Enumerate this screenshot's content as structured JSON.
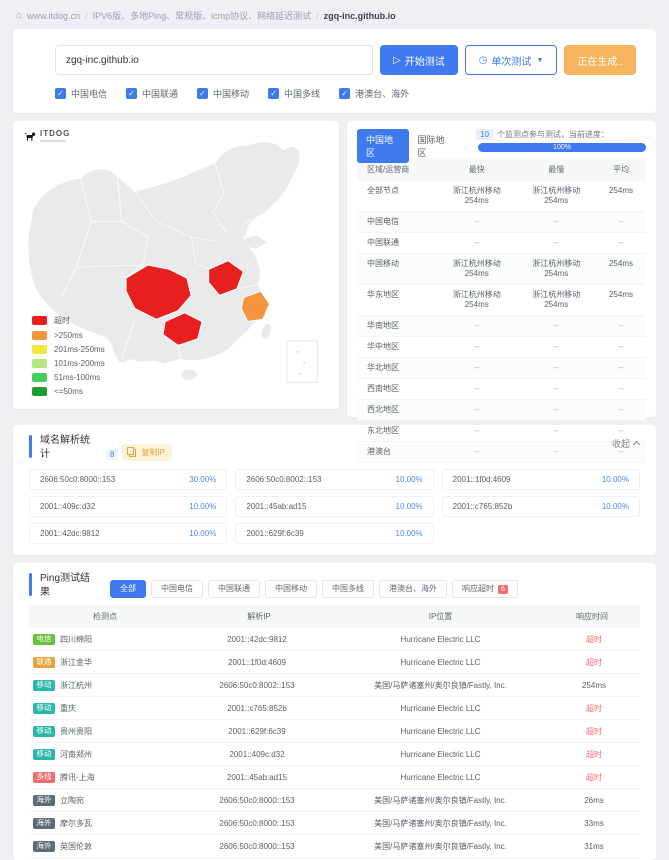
{
  "breadcrumb": {
    "home_label": "www.itdog.cn",
    "category": "IPV6版、多地Ping、常规版、icmp协议、网络延迟测试",
    "target": "zgq-inc.github.io"
  },
  "test_form": {
    "domain_input": "zgq-inc.github.io",
    "start_button": "开始测试",
    "mode_button": "单次测试",
    "generating_button": "正在生成..",
    "checkboxes": [
      {
        "label": "中国电信",
        "checked": true
      },
      {
        "label": "中国联通",
        "checked": true
      },
      {
        "label": "中国移动",
        "checked": true
      },
      {
        "label": "中国多线",
        "checked": true
      },
      {
        "label": "港澳台、海外",
        "checked": true
      }
    ]
  },
  "map_panel": {
    "logo_text": "ITDOG",
    "legend": [
      {
        "label": "超时",
        "color": "#e71f1f"
      },
      {
        "label": ">250ms",
        "color": "#f2953c"
      },
      {
        "label": "201ms-250ms",
        "color": "#f4e43f"
      },
      {
        "label": "101ms-200ms",
        "color": "#b5e57d"
      },
      {
        "label": "51ms-100ms",
        "color": "#44ce5f"
      },
      {
        "label": "<=50ms",
        "color": "#1e9d33"
      }
    ],
    "highlights": [
      {
        "province": "sichuan",
        "status": "超时"
      },
      {
        "province": "guizhou",
        "status": "超时"
      },
      {
        "province": "henan",
        "status": "超时"
      },
      {
        "province": "zhejiang",
        "status": ">250ms"
      }
    ]
  },
  "region_panel": {
    "tabs": [
      {
        "label": "中国地区",
        "active": true
      },
      {
        "label": "国际地区",
        "active": false
      }
    ],
    "monitor_count": "10",
    "progress_label": "个监测点参与测试，当前进度：",
    "progress_percent": "100%",
    "headers": [
      "区域/运营商",
      "最快",
      "最慢",
      "平均"
    ],
    "rows": [
      [
        "全部节点",
        "浙江杭州移动 254ms",
        "浙江杭州移动 254ms",
        "254ms"
      ],
      [
        "中国电信",
        "--",
        "--",
        "--"
      ],
      [
        "中国联通",
        "--",
        "--",
        "--"
      ],
      [
        "中国移动",
        "浙江杭州移动 254ms",
        "浙江杭州移动 254ms",
        "254ms"
      ],
      [
        "华东地区",
        "浙江杭州移动 254ms",
        "浙江杭州移动 254ms",
        "254ms"
      ],
      [
        "华南地区",
        "--",
        "--",
        "--"
      ],
      [
        "华中地区",
        "--",
        "--",
        "--"
      ],
      [
        "华北地区",
        "--",
        "--",
        "--"
      ],
      [
        "西南地区",
        "--",
        "--",
        "--"
      ],
      [
        "西北地区",
        "--",
        "--",
        "--"
      ],
      [
        "东北地区",
        "--",
        "--",
        "--"
      ],
      [
        "港澳台",
        "--",
        "--",
        "--"
      ]
    ]
  },
  "dns_panel": {
    "title": "域名解析统计",
    "count": "8",
    "copy_button": "复制IP",
    "collapse_label": "收起",
    "items": [
      {
        "ip": "2606:50c0:8000::153",
        "percent": "30.00%"
      },
      {
        "ip": "2606:50c0:8002::153",
        "percent": "10.00%"
      },
      {
        "ip": "2001::1f0d:4609",
        "percent": "10.00%"
      },
      {
        "ip": "2001::409c:d32",
        "percent": "10.00%"
      },
      {
        "ip": "2001::45ab:ad15",
        "percent": "10.00%"
      },
      {
        "ip": "2001::c765:852b",
        "percent": "10.00%"
      },
      {
        "ip": "2001::42dc:9812",
        "percent": "10.00%"
      },
      {
        "ip": "2001::629f:6c39",
        "percent": "10.00%"
      }
    ]
  },
  "ping_panel": {
    "title": "Ping测试结果",
    "tabs": [
      {
        "label": "全部",
        "active": true
      },
      {
        "label": "中国电信"
      },
      {
        "label": "中国联通"
      },
      {
        "label": "中国移动"
      },
      {
        "label": "中国多线"
      },
      {
        "label": "港澳台、海外"
      },
      {
        "label": "响应超时",
        "badge": "6"
      }
    ],
    "headers": [
      "检测点",
      "解析IP",
      "IP位置",
      "响应时间"
    ],
    "rows": [
      {
        "carrier": "电信",
        "carrier_color": "#67c23a",
        "node": "四川绵阳",
        "ip": "2001::42dc:9812",
        "location": "Hurricane Electric LLC",
        "latency": "超时",
        "timeout": true
      },
      {
        "carrier": "联通",
        "carrier_color": "#e6a23c",
        "node": "浙江金华",
        "ip": "2001::1f0d:4609",
        "location": "Hurricane Electric LLC",
        "latency": "超时",
        "timeout": true
      },
      {
        "carrier": "移动",
        "carrier_color": "#2bb8aa",
        "node": "浙江杭州",
        "ip": "2606:50c0:8002::153",
        "location": "美国/马萨诸塞州/奥尔良镇/Fastly, Inc.",
        "latency": "254ms",
        "timeout": false
      },
      {
        "carrier": "移动",
        "carrier_color": "#2bb8aa",
        "node": "重庆",
        "ip": "2001::c765:852b",
        "location": "Hurricane Electric LLC",
        "latency": "超时",
        "timeout": true
      },
      {
        "carrier": "移动",
        "carrier_color": "#2bb8aa",
        "node": "贵州贵阳",
        "ip": "2001::629f:6c39",
        "location": "Hurricane Electric LLC",
        "latency": "超时",
        "timeout": true
      },
      {
        "carrier": "移动",
        "carrier_color": "#2bb8aa",
        "node": "河南郑州",
        "ip": "2001::409c:d32",
        "location": "Hurricane Electric LLC",
        "latency": "超时",
        "timeout": true
      },
      {
        "carrier": "多线",
        "carrier_color": "#f56c6c",
        "node": "腾讯-上海",
        "ip": "2001::45ab:ad15",
        "location": "Hurricane Electric LLC",
        "latency": "超时",
        "timeout": true
      },
      {
        "carrier": "海外",
        "carrier_color": "#5f6b77",
        "node": "立陶宛",
        "ip": "2606:50c0:8000::153",
        "location": "美国/马萨诸塞州/奥尔良镇/Fastly, Inc.",
        "latency": "26ms",
        "timeout": false
      },
      {
        "carrier": "海外",
        "carrier_color": "#5f6b77",
        "node": "摩尔多瓦",
        "ip": "2606:50c0:8000::153",
        "location": "美国/马萨诸塞州/奥尔良镇/Fastly, Inc.",
        "latency": "33ms",
        "timeout": false
      },
      {
        "carrier": "海外",
        "carrier_color": "#5f6b77",
        "node": "英国伦敦",
        "ip": "2606:50c0:8000::153",
        "location": "美国/马萨诸塞州/奥尔良镇/Fastly, Inc.",
        "latency": "31ms",
        "timeout": false
      }
    ]
  }
}
